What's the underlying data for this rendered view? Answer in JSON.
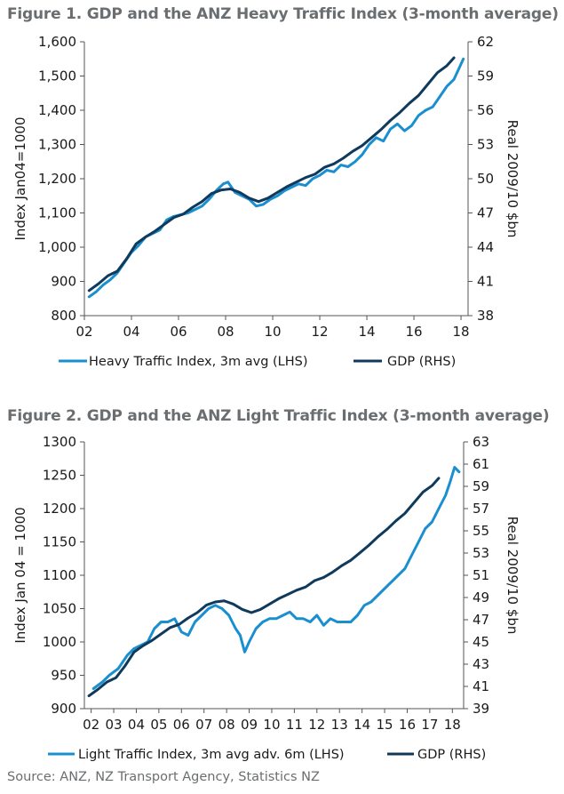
{
  "figures": [
    {
      "title": "Figure 1. GDP and the ANZ Heavy Traffic Index (3-month average)",
      "ylabel_left": "Index Jan04=1000",
      "ylabel_right": "Real 2009/10 $bn",
      "legend": [
        "Heavy Traffic Index, 3m avg (LHS)",
        "GDP (RHS)"
      ]
    },
    {
      "title": "Figure 2. GDP and the ANZ Light Traffic Index (3-month average)",
      "ylabel_left": "Index Jan 04 = 1000",
      "ylabel_right": "Real 2009/10 $bn",
      "legend": [
        "Light Traffic Index, 3m avg adv. 6m (LHS)",
        "GDP (RHS)"
      ]
    }
  ],
  "source": "Source: ANZ, NZ Transport Agency, Statistics NZ",
  "colors": {
    "light_series": "#1a8fd0",
    "dark_series": "#0f3a5c"
  },
  "chart_data": [
    {
      "type": "line",
      "title": "Figure 1. GDP and the ANZ Heavy Traffic Index (3-month average)",
      "ylabel_left": "Index Jan04=1000",
      "ylabel_right": "Real 2009/10 $bn",
      "x_ticks": [
        "02",
        "04",
        "06",
        "08",
        "10",
        "12",
        "14",
        "16",
        "18"
      ],
      "xlim": [
        2002,
        2018.3
      ],
      "ylim_left": [
        800,
        1600
      ],
      "yticks_left": [
        "800",
        "900",
        "1,000",
        "1,100",
        "1,200",
        "1,300",
        "1,400",
        "1,500",
        "1,600"
      ],
      "ylim_right": [
        38,
        62
      ],
      "yticks_right": [
        "38",
        "41",
        "44",
        "47",
        "50",
        "53",
        "56",
        "59",
        "62"
      ],
      "legend_position": "bottom",
      "series": [
        {
          "name": "Heavy Traffic Index, 3m avg (LHS)",
          "axis": "left",
          "x": [
            2002.2,
            2002.5,
            2002.8,
            2003.1,
            2003.4,
            2003.7,
            2004.0,
            2004.3,
            2004.6,
            2004.9,
            2005.2,
            2005.5,
            2005.8,
            2006.1,
            2006.4,
            2006.7,
            2007.0,
            2007.3,
            2007.6,
            2007.9,
            2008.1,
            2008.4,
            2008.7,
            2009.0,
            2009.3,
            2009.6,
            2009.9,
            2010.2,
            2010.5,
            2010.8,
            2011.1,
            2011.4,
            2011.7,
            2012.0,
            2012.3,
            2012.6,
            2012.9,
            2013.2,
            2013.5,
            2013.8,
            2014.1,
            2014.4,
            2014.7,
            2015.0,
            2015.3,
            2015.6,
            2015.9,
            2016.2,
            2016.5,
            2016.8,
            2017.1,
            2017.4,
            2017.7,
            2017.9,
            2018.1
          ],
          "y": [
            855,
            870,
            890,
            905,
            925,
            955,
            985,
            1005,
            1030,
            1040,
            1050,
            1080,
            1090,
            1095,
            1100,
            1110,
            1120,
            1140,
            1165,
            1185,
            1190,
            1160,
            1150,
            1140,
            1120,
            1125,
            1140,
            1150,
            1165,
            1175,
            1185,
            1180,
            1200,
            1210,
            1225,
            1220,
            1240,
            1235,
            1250,
            1270,
            1300,
            1320,
            1310,
            1345,
            1360,
            1340,
            1355,
            1385,
            1400,
            1410,
            1440,
            1470,
            1490,
            1520,
            1550
          ]
        },
        {
          "name": "GDP (RHS)",
          "axis": "right",
          "x": [
            2002.2,
            2002.6,
            2003.0,
            2003.4,
            2003.8,
            2004.2,
            2004.6,
            2005.0,
            2005.4,
            2005.8,
            2006.2,
            2006.6,
            2007.0,
            2007.4,
            2007.8,
            2008.2,
            2008.6,
            2009.0,
            2009.4,
            2009.8,
            2010.2,
            2010.6,
            2011.0,
            2011.4,
            2011.8,
            2012.2,
            2012.6,
            2013.0,
            2013.4,
            2013.8,
            2014.2,
            2014.6,
            2015.0,
            2015.4,
            2015.8,
            2016.2,
            2016.6,
            2017.0,
            2017.4,
            2017.7
          ],
          "y": [
            40.2,
            40.8,
            41.5,
            41.9,
            43.0,
            44.3,
            44.9,
            45.4,
            46.0,
            46.6,
            46.9,
            47.5,
            48.0,
            48.7,
            49.0,
            49.1,
            48.8,
            48.3,
            48.0,
            48.3,
            48.8,
            49.3,
            49.7,
            50.1,
            50.4,
            51.0,
            51.3,
            51.8,
            52.4,
            52.9,
            53.6,
            54.3,
            55.1,
            55.8,
            56.6,
            57.3,
            58.3,
            59.3,
            59.9,
            60.6
          ]
        }
      ]
    },
    {
      "type": "line",
      "title": "Figure 2. GDP and the ANZ Light Traffic Index (3-month average)",
      "ylabel_left": "Index Jan 04 = 1000",
      "ylabel_right": "Real 2009/10 $bn",
      "x_ticks": [
        "02",
        "03",
        "04",
        "05",
        "06",
        "07",
        "08",
        "09",
        "10",
        "11",
        "12",
        "13",
        "14",
        "15",
        "16",
        "17",
        "18"
      ],
      "xlim": [
        2002,
        2018.8
      ],
      "ylim_left": [
        900,
        1300
      ],
      "yticks_left": [
        "900",
        "950",
        "1000",
        "1050",
        "1100",
        "1150",
        "1200",
        "1250",
        "1300"
      ],
      "ylim_right": [
        39,
        64
      ],
      "yticks_right": [
        "39",
        "41",
        "43",
        "45",
        "47",
        "49",
        "51",
        "53",
        "55",
        "57",
        "59",
        "61",
        "63"
      ],
      "legend_position": "bottom",
      "series": [
        {
          "name": "Light Traffic Index, 3m avg adv. 6m (LHS)",
          "axis": "left",
          "x": [
            2002.4,
            2002.8,
            2003.1,
            2003.5,
            2003.9,
            2004.2,
            2004.5,
            2004.8,
            2005.1,
            2005.4,
            2005.7,
            2006.0,
            2006.3,
            2006.6,
            2006.9,
            2007.2,
            2007.5,
            2007.8,
            2008.1,
            2008.4,
            2008.7,
            2008.9,
            2009.1,
            2009.3,
            2009.6,
            2009.9,
            2010.2,
            2010.5,
            2010.8,
            2011.1,
            2011.4,
            2011.7,
            2012.0,
            2012.3,
            2012.6,
            2012.9,
            2013.2,
            2013.5,
            2013.8,
            2014.1,
            2014.4,
            2014.7,
            2015.0,
            2015.3,
            2015.6,
            2015.9,
            2016.2,
            2016.5,
            2016.8,
            2017.1,
            2017.4,
            2017.7,
            2018.0,
            2018.2,
            2018.4,
            2018.6
          ],
          "y": [
            930,
            940,
            950,
            960,
            980,
            990,
            995,
            1000,
            1020,
            1030,
            1030,
            1035,
            1015,
            1010,
            1030,
            1040,
            1050,
            1055,
            1050,
            1040,
            1020,
            1010,
            985,
            1000,
            1020,
            1030,
            1035,
            1035,
            1040,
            1045,
            1035,
            1035,
            1030,
            1040,
            1025,
            1035,
            1030,
            1030,
            1030,
            1040,
            1055,
            1060,
            1070,
            1080,
            1090,
            1100,
            1110,
            1130,
            1150,
            1170,
            1180,
            1200,
            1220,
            1240,
            1262,
            1255
          ]
        },
        {
          "name": "GDP (RHS)",
          "axis": "right",
          "x": [
            2002.2,
            2002.6,
            2003.0,
            2003.4,
            2003.8,
            2004.2,
            2004.6,
            2005.0,
            2005.4,
            2005.8,
            2006.2,
            2006.6,
            2007.0,
            2007.4,
            2007.8,
            2008.2,
            2008.6,
            2009.0,
            2009.4,
            2009.8,
            2010.2,
            2010.6,
            2011.0,
            2011.4,
            2011.8,
            2012.2,
            2012.6,
            2013.0,
            2013.4,
            2013.8,
            2014.2,
            2014.6,
            2015.0,
            2015.4,
            2015.8,
            2016.2,
            2016.6,
            2017.0,
            2017.4,
            2017.7
          ],
          "y": [
            40.2,
            40.8,
            41.5,
            41.9,
            43.0,
            44.3,
            44.9,
            45.4,
            46.0,
            46.6,
            46.9,
            47.5,
            48.0,
            48.7,
            49.0,
            49.1,
            48.8,
            48.3,
            48.0,
            48.3,
            48.8,
            49.3,
            49.7,
            50.1,
            50.4,
            51.0,
            51.3,
            51.8,
            52.4,
            52.9,
            53.6,
            54.3,
            55.1,
            55.8,
            56.6,
            57.3,
            58.3,
            59.3,
            59.9,
            60.6
          ]
        }
      ]
    }
  ]
}
